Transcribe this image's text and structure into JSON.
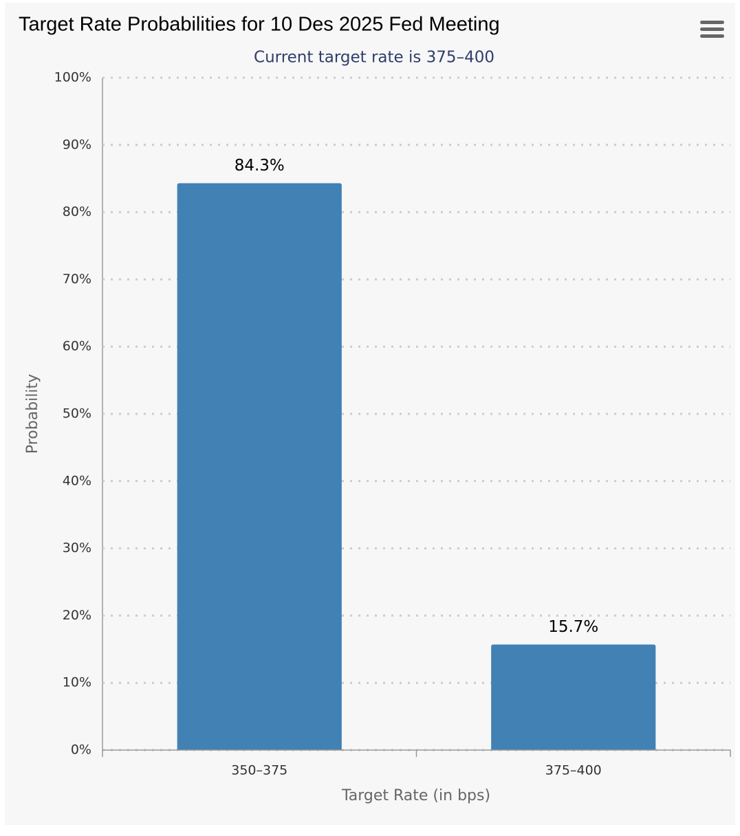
{
  "chart_data": {
    "type": "bar",
    "title": "Target Rate Probabilities for 10 Des 2025 Fed Meeting",
    "subtitle": "Current target rate is 375–400",
    "y_label": "Probability",
    "x_label": "Target Rate (in bps)",
    "categories": [
      "350–375",
      "375–400"
    ],
    "values": [
      84.3,
      15.7
    ],
    "value_labels": [
      "84.3%",
      "15.7%"
    ],
    "color": "#4281b4",
    "ylim": [
      0,
      100
    ],
    "yticks": [
      {
        "value": 0,
        "label": "0%"
      },
      {
        "value": 10,
        "label": "10%"
      },
      {
        "value": 20,
        "label": "20%"
      },
      {
        "value": 30,
        "label": "30%"
      },
      {
        "value": 40,
        "label": "40%"
      },
      {
        "value": 50,
        "label": "50%"
      },
      {
        "value": 60,
        "label": "60%"
      },
      {
        "value": 70,
        "label": "70%"
      },
      {
        "value": 80,
        "label": "80%"
      },
      {
        "value": 90,
        "label": "90%"
      },
      {
        "value": 100,
        "label": "100%"
      }
    ],
    "grid": true
  }
}
